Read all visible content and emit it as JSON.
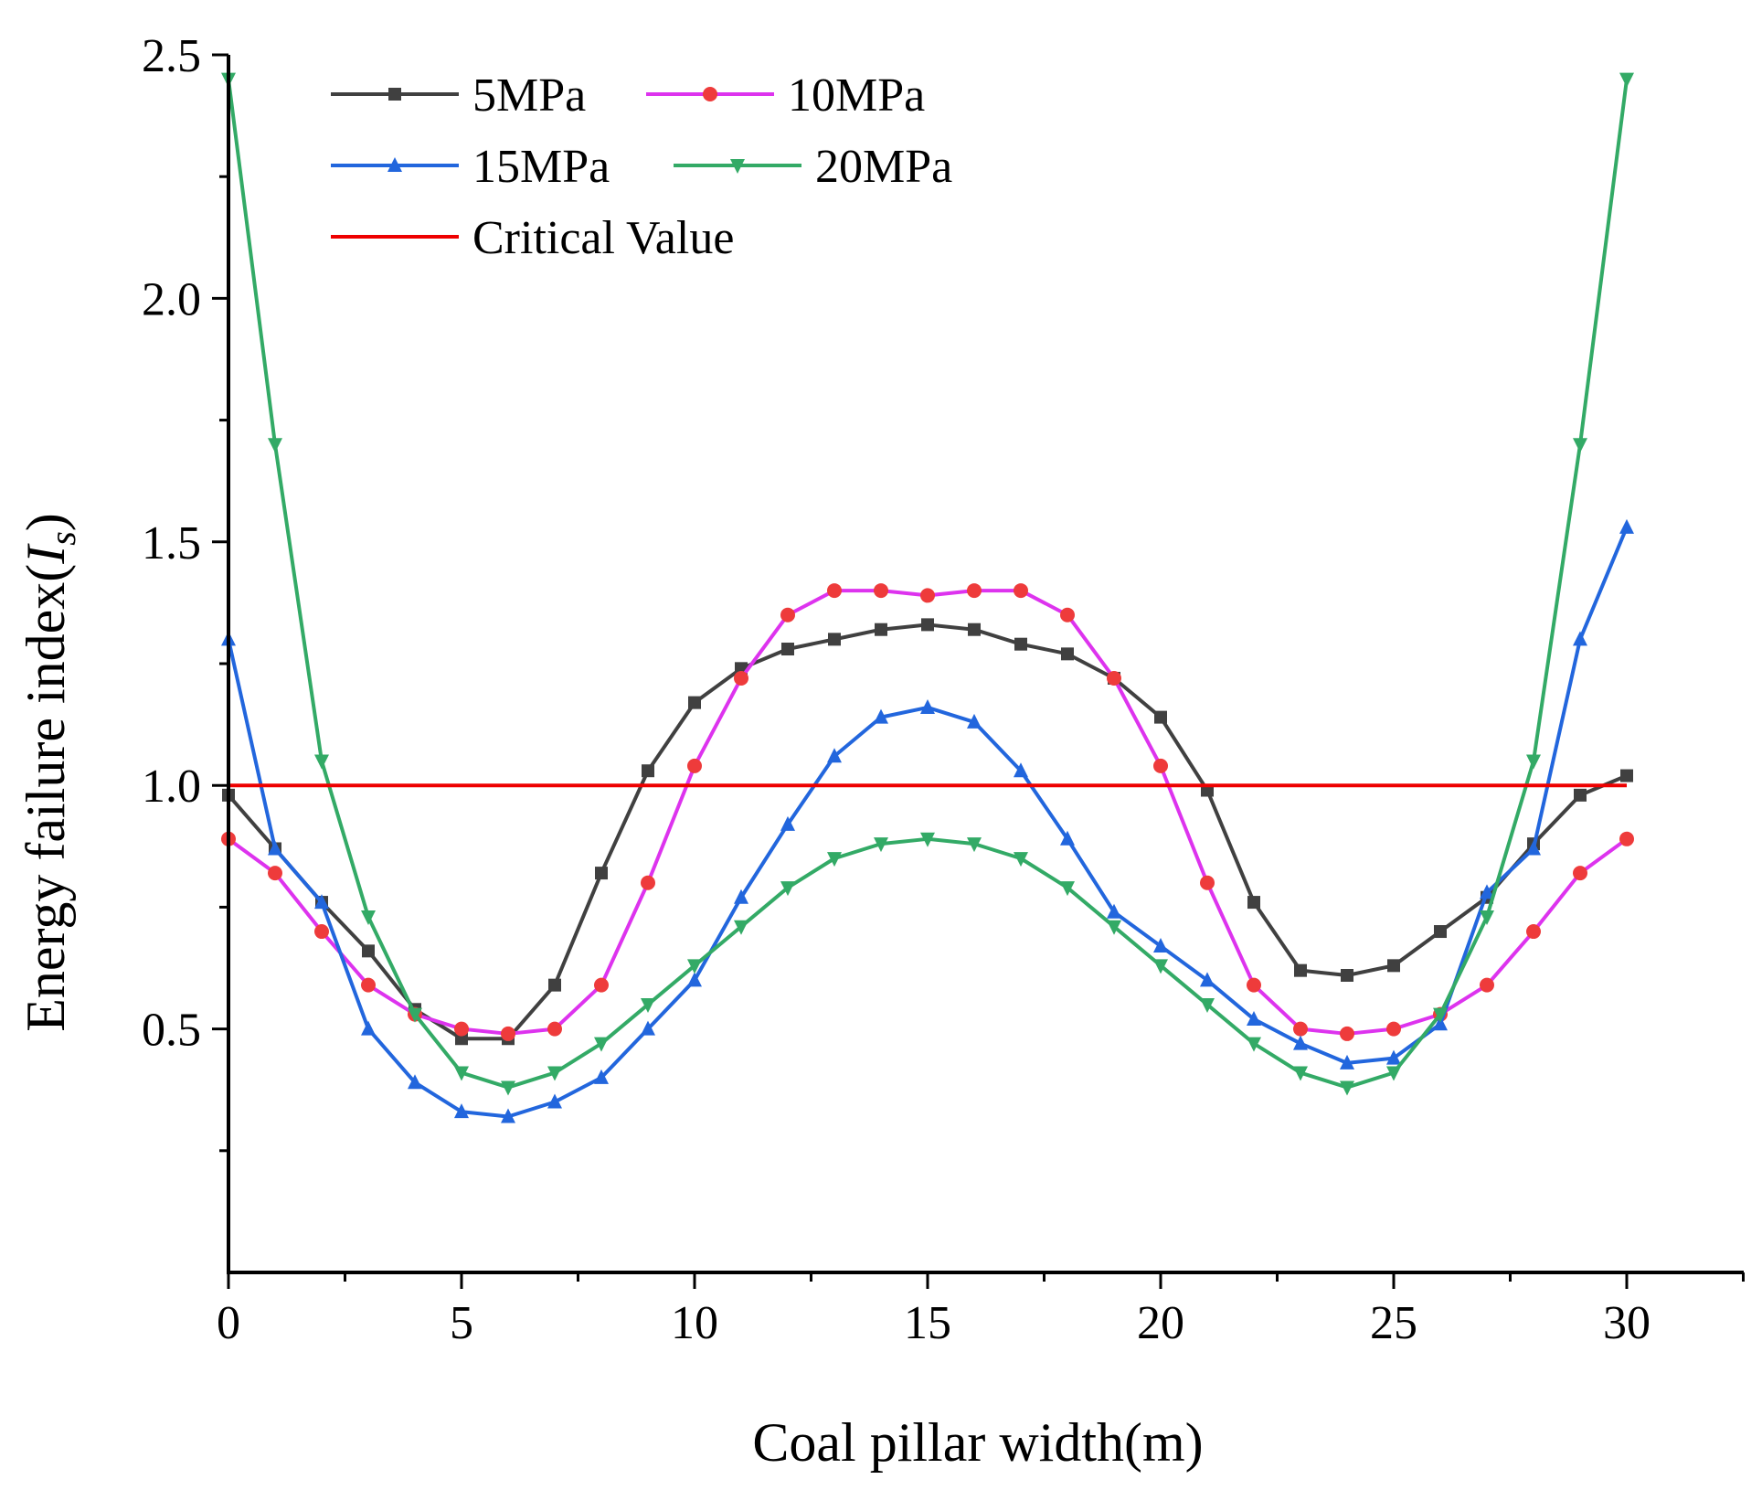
{
  "chart_data": {
    "type": "line",
    "title": "",
    "xlabel": "Coal pillar width(m)",
    "ylabel_main": "Energy failure index(",
    "ylabel_symbol": "I",
    "ylabel_subscript": "s",
    "ylabel_close": ")",
    "xlim": [
      0,
      32.5
    ],
    "ylim": [
      0,
      2.5
    ],
    "xticks": [
      0,
      5,
      10,
      15,
      20,
      25,
      30
    ],
    "xtick_labels": [
      "0",
      "5",
      "10",
      "15",
      "20",
      "25",
      "30"
    ],
    "yticks": [
      0.5,
      1.0,
      1.5,
      2.0,
      2.5
    ],
    "ytick_labels": [
      "0.5",
      "1.0",
      "1.5",
      "2.0",
      "2.5"
    ],
    "grid": false,
    "legend_position": "top-left",
    "x": [
      0,
      1,
      2,
      3,
      4,
      5,
      6,
      7,
      8,
      9,
      10,
      11,
      12,
      13,
      14,
      15,
      16,
      17,
      18,
      19,
      20,
      21,
      22,
      23,
      24,
      25,
      26,
      27,
      28,
      29,
      30
    ],
    "series": [
      {
        "name": "5MPa",
        "color": "#404040",
        "marker": "square",
        "values": [
          0.98,
          0.87,
          0.76,
          0.66,
          0.54,
          0.48,
          0.48,
          0.59,
          0.82,
          1.03,
          1.17,
          1.24,
          1.28,
          1.3,
          1.32,
          1.33,
          1.32,
          1.29,
          1.27,
          1.22,
          1.14,
          0.99,
          0.76,
          0.62,
          0.61,
          0.63,
          0.7,
          0.77,
          0.88,
          0.98,
          1.02
        ]
      },
      {
        "name": "10MPa",
        "color": "#dd33ee",
        "marker": "circle",
        "marker_color": "#ee3b3b",
        "values": [
          0.89,
          0.82,
          0.7,
          0.59,
          0.53,
          0.5,
          0.49,
          0.5,
          0.59,
          0.8,
          1.04,
          1.22,
          1.35,
          1.4,
          1.4,
          1.39,
          1.4,
          1.4,
          1.35,
          1.22,
          1.04,
          0.8,
          0.59,
          0.5,
          0.49,
          0.5,
          0.53,
          0.59,
          0.7,
          0.82,
          0.89
        ]
      },
      {
        "name": "15MPa",
        "color": "#2266dd",
        "marker": "triangle-up",
        "values": [
          1.3,
          0.87,
          0.76,
          0.5,
          0.39,
          0.33,
          0.32,
          0.35,
          0.4,
          0.5,
          0.6,
          0.77,
          0.92,
          1.06,
          1.14,
          1.16,
          1.13,
          1.03,
          0.89,
          0.74,
          0.67,
          0.6,
          0.52,
          0.47,
          0.43,
          0.44,
          0.51,
          0.78,
          0.87,
          1.3,
          1.53
        ]
      },
      {
        "name": "20MPa",
        "color": "#33aa66",
        "marker": "triangle-down",
        "values": [
          2.45,
          1.7,
          1.05,
          0.73,
          0.53,
          0.41,
          0.38,
          0.41,
          0.47,
          0.55,
          0.63,
          0.71,
          0.79,
          0.85,
          0.88,
          0.89,
          0.88,
          0.85,
          0.79,
          0.71,
          0.63,
          0.55,
          0.47,
          0.41,
          0.38,
          0.41,
          0.53,
          0.73,
          1.05,
          1.7,
          2.45
        ]
      }
    ],
    "reference_line": {
      "name": "Critical Value",
      "color": "#ee0000",
      "y": 1.0,
      "x_range": [
        0,
        30
      ]
    }
  }
}
